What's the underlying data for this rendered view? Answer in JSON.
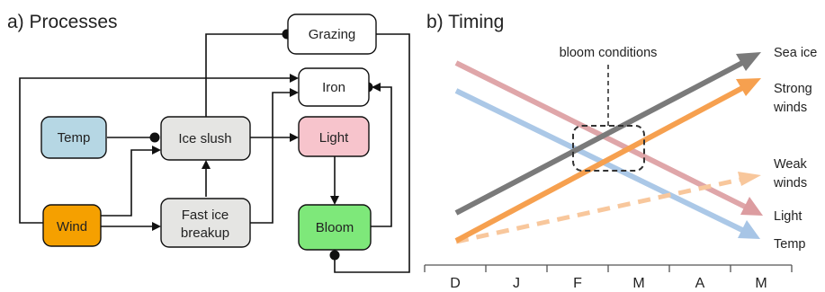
{
  "processes": {
    "title": "a) Processes",
    "nodes": {
      "grazing": "Grazing",
      "iron": "Iron",
      "temp": "Temp",
      "ice_slush": "Ice slush",
      "light": "Light",
      "wind": "Wind",
      "fast_ice_breakup_line1": "Fast ice",
      "fast_ice_breakup_line2": "breakup",
      "bloom": "Bloom"
    },
    "colors": {
      "temp": "#b6d7e4",
      "wind": "#f5a000",
      "ice_slush": "#e5e5e3",
      "fast_ice": "#e5e5e3",
      "light": "#f7c4cc",
      "bloom": "#7ee87a",
      "white_box": "#ffffff"
    }
  },
  "timing": {
    "title": "b) Timing",
    "annotation": "bloom conditions",
    "months": [
      "D",
      "J",
      "F",
      "M",
      "A",
      "M"
    ],
    "series": [
      {
        "name_lines": [
          "Sea ice"
        ],
        "color": "#7a7a7a",
        "style": "solid"
      },
      {
        "name_lines": [
          "Strong",
          "winds"
        ],
        "color": "#f6a04f",
        "style": "solid"
      },
      {
        "name_lines": [
          "Weak",
          "winds"
        ],
        "color": "#f8c79c",
        "style": "dashed"
      },
      {
        "name_lines": [
          "Light"
        ],
        "color": "#dc9ca0",
        "style": "solid"
      },
      {
        "name_lines": [
          "Temp"
        ],
        "color": "#a7c5e6",
        "style": "solid"
      }
    ]
  }
}
